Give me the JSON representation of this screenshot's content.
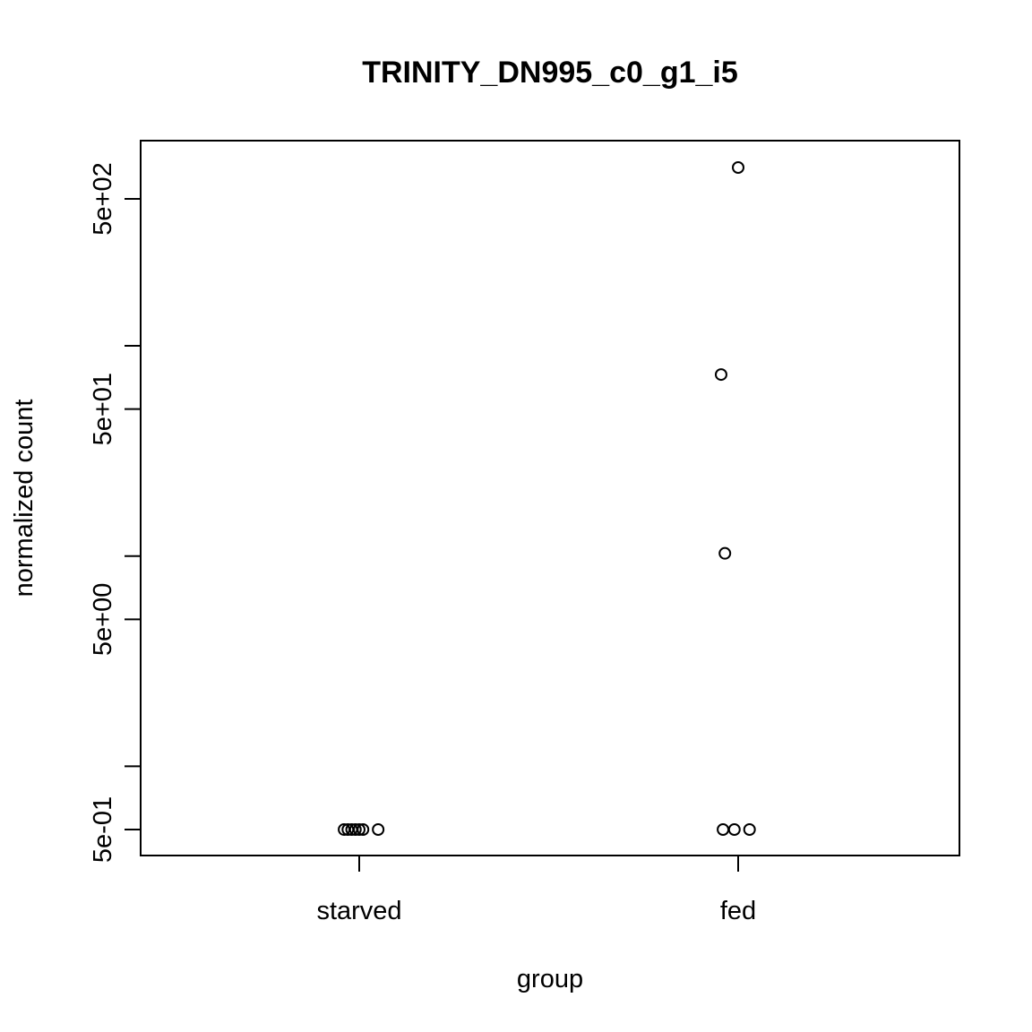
{
  "chart_data": {
    "type": "scatter",
    "title": "TRINITY_DN995_c0_g1_i5",
    "xlabel": "group",
    "ylabel": "normalized count",
    "y_scale": "log10",
    "ylim": [
      0.4,
      1100
    ],
    "categories": [
      "starved",
      "fed"
    ],
    "y_tick_labels": [
      "5e-01",
      "5e+00",
      "5e+01",
      "5e+02"
    ],
    "y_tick_values": [
      0.5,
      5,
      50,
      500
    ],
    "y_minor_ticks": [
      1,
      10,
      100,
      1000
    ],
    "points": [
      {
        "group": "starved",
        "jitter": -0.04,
        "y": 0.5
      },
      {
        "group": "starved",
        "jitter": -0.03,
        "y": 0.5
      },
      {
        "group": "starved",
        "jitter": -0.02,
        "y": 0.5
      },
      {
        "group": "starved",
        "jitter": -0.01,
        "y": 0.5
      },
      {
        "group": "starved",
        "jitter": 0.0,
        "y": 0.5
      },
      {
        "group": "starved",
        "jitter": 0.01,
        "y": 0.5
      },
      {
        "group": "starved",
        "jitter": 0.05,
        "y": 0.5
      },
      {
        "group": "fed",
        "jitter": -0.04,
        "y": 0.5
      },
      {
        "group": "fed",
        "jitter": -0.01,
        "y": 0.5
      },
      {
        "group": "fed",
        "jitter": 0.03,
        "y": 0.5
      },
      {
        "group": "fed",
        "jitter": -0.035,
        "y": 10.3
      },
      {
        "group": "fed",
        "jitter": -0.045,
        "y": 73
      },
      {
        "group": "fed",
        "jitter": 0.0,
        "y": 705
      }
    ],
    "colors": {
      "points": "#000000",
      "axis": "#000000"
    }
  }
}
